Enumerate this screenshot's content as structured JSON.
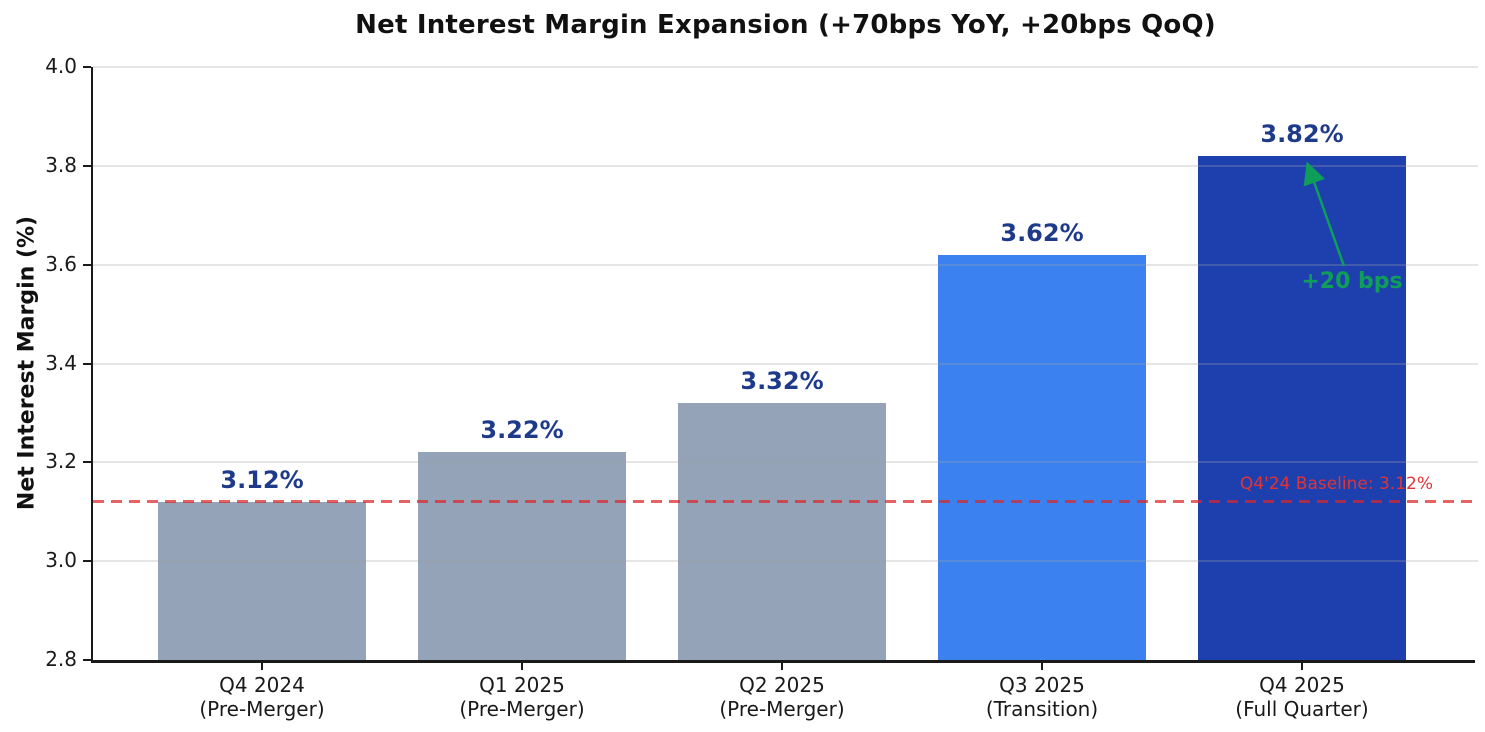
{
  "chart_data": {
    "type": "bar",
    "title": "Net Interest Margin Expansion (+70bps YoY, +20bps QoQ)",
    "ylabel": "Net Interest Margin (%)",
    "xlabel": "",
    "ylim": [
      2.8,
      4.0
    ],
    "ytick_values": [
      2.8,
      3.0,
      3.2,
      3.4,
      3.6,
      3.8,
      4.0
    ],
    "ytick_labels": [
      "2.8",
      "3.0",
      "3.2",
      "3.4",
      "3.6",
      "3.8",
      "4.0"
    ],
    "grid": true,
    "legend": false,
    "categories": [
      "Q4 2024",
      "Q1 2025",
      "Q2 2025",
      "Q3 2025",
      "Q4 2025"
    ],
    "category_sublabels": [
      "(Pre-Merger)",
      "(Pre-Merger)",
      "(Pre-Merger)",
      "(Transition)",
      "(Full Quarter)"
    ],
    "values": [
      3.12,
      3.22,
      3.32,
      3.62,
      3.82
    ],
    "value_labels": [
      "3.12%",
      "3.22%",
      "3.32%",
      "3.62%",
      "3.82%"
    ],
    "bar_colors": [
      "#94a3b8",
      "#94a3b8",
      "#94a3b8",
      "#3b82f0",
      "#1e40af"
    ],
    "value_label_color": "#1e3a8a",
    "annotations": {
      "baseline": {
        "text": "Q4'24 Baseline: 3.12%",
        "value": 3.12,
        "line_color": "#dc2626",
        "text_color": "#e03434",
        "line_style": "dashed"
      },
      "qoq": {
        "text": "+20 bps",
        "color": "#0f9e58"
      }
    }
  }
}
